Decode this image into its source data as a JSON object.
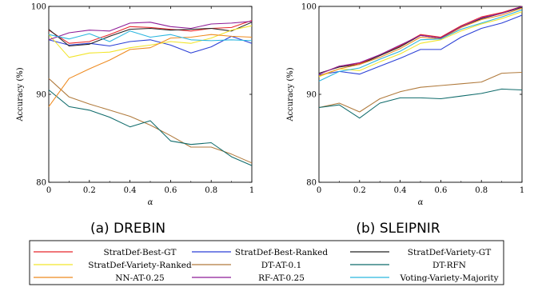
{
  "colors": {
    "StratDef-Best-GT": "#e8262a",
    "StratDef-Best-Ranked": "#2a3fd6",
    "StratDef-Variety-GT": "#222222",
    "StratDef-Variety-Ranked": "#f2e52a",
    "DT-AT-0.1": "#b07a3c",
    "DT-RFN": "#0f6b6b",
    "NN-AT-0.25": "#ee8a1f",
    "RF-AT-0.25": "#8e1c97",
    "Voting-Variety-Majority": "#2ab6df"
  },
  "chart_data": [
    {
      "type": "line",
      "caption": "(a) DREBIN",
      "xlabel": "α",
      "ylabel": "Accuracy (%)",
      "xlim": [
        0,
        1
      ],
      "ylim": [
        80,
        100
      ],
      "xticks": [
        "0",
        "0.2",
        "0.4",
        "0.6",
        "0.8",
        "1"
      ],
      "yticks": [
        "80",
        "90",
        "100"
      ],
      "x": [
        0,
        0.1,
        0.2,
        0.3,
        0.4,
        0.5,
        0.6,
        0.7,
        0.8,
        0.9,
        1.0
      ],
      "series": [
        {
          "name": "StratDef-Best-GT",
          "values": [
            97.3,
            95.8,
            96.0,
            96.8,
            97.7,
            97.6,
            97.4,
            97.2,
            97.5,
            97.6,
            98.4
          ]
        },
        {
          "name": "StratDef-Best-Ranked",
          "values": [
            96.2,
            95.6,
            95.8,
            95.5,
            96.0,
            96.2,
            95.6,
            94.7,
            95.4,
            96.6,
            95.8
          ]
        },
        {
          "name": "StratDef-Variety-GT",
          "values": [
            97.4,
            95.5,
            95.7,
            96.6,
            97.4,
            97.5,
            97.3,
            97.4,
            97.5,
            97.2,
            98.2
          ]
        },
        {
          "name": "StratDef-Variety-Ranked",
          "values": [
            96.8,
            94.2,
            94.7,
            94.8,
            95.3,
            95.6,
            96.0,
            95.8,
            96.4,
            97.3,
            97.8
          ]
        },
        {
          "name": "DT-AT-0.1",
          "values": [
            91.8,
            89.7,
            88.9,
            88.2,
            87.5,
            86.5,
            85.3,
            84.0,
            84.0,
            83.2,
            82.2
          ]
        },
        {
          "name": "DT-RFN",
          "values": [
            90.5,
            88.6,
            88.2,
            87.4,
            86.3,
            87.0,
            84.7,
            84.3,
            84.5,
            82.9,
            81.9
          ]
        },
        {
          "name": "NN-AT-0.25",
          "values": [
            88.6,
            91.8,
            92.9,
            93.9,
            95.1,
            95.3,
            96.4,
            96.5,
            96.8,
            96.6,
            96.5
          ]
        },
        {
          "name": "RF-AT-0.25",
          "values": [
            96.2,
            97.0,
            97.3,
            97.2,
            98.1,
            98.2,
            97.7,
            97.5,
            98.0,
            98.1,
            98.3
          ]
        },
        {
          "name": "Voting-Variety-Majority",
          "values": [
            96.8,
            96.3,
            96.9,
            96.0,
            97.2,
            96.5,
            96.8,
            96.2,
            96.1,
            96.2,
            96.1
          ]
        }
      ]
    },
    {
      "type": "line",
      "caption": "(b) SLEIPNIR",
      "xlabel": "α",
      "ylabel": "Accuracy (%)",
      "xlim": [
        0,
        1
      ],
      "ylim": [
        80,
        100
      ],
      "xticks": [
        "0",
        "0.2",
        "0.4",
        "0.6",
        "0.8",
        "1"
      ],
      "yticks": [
        "80",
        "90",
        "100"
      ],
      "x": [
        0,
        0.1,
        0.2,
        0.3,
        0.4,
        0.5,
        0.6,
        0.7,
        0.8,
        0.9,
        1.0
      ],
      "series": [
        {
          "name": "StratDef-Best-GT",
          "values": [
            92.3,
            93.2,
            93.5,
            94.5,
            95.5,
            96.8,
            96.5,
            97.8,
            98.8,
            99.3,
            100.0
          ]
        },
        {
          "name": "StratDef-Best-Ranked",
          "values": [
            92.2,
            92.6,
            92.3,
            93.2,
            94.1,
            95.1,
            95.1,
            96.5,
            97.5,
            98.1,
            99.0
          ]
        },
        {
          "name": "StratDef-Variety-GT",
          "values": [
            92.4,
            93.1,
            93.4,
            94.4,
            95.4,
            96.7,
            96.4,
            97.7,
            98.6,
            99.2,
            99.9
          ]
        },
        {
          "name": "StratDef-Variety-Ranked",
          "values": [
            92.0,
            92.9,
            92.7,
            93.7,
            94.6,
            95.8,
            96.2,
            97.2,
            98.0,
            98.6,
            99.4
          ]
        },
        {
          "name": "DT-AT-0.1",
          "values": [
            88.5,
            89.0,
            88.0,
            89.5,
            90.3,
            90.8,
            91.0,
            91.2,
            91.4,
            92.4,
            92.5
          ]
        },
        {
          "name": "DT-RFN",
          "values": [
            88.5,
            88.8,
            87.3,
            89.0,
            89.6,
            89.6,
            89.5,
            89.8,
            90.1,
            90.6,
            90.5
          ]
        },
        {
          "name": "NN-AT-0.25",
          "values": [
            92.1,
            92.9,
            93.4,
            94.2,
            95.2,
            96.5,
            96.3,
            97.6,
            98.5,
            99.0,
            99.8
          ]
        },
        {
          "name": "RF-AT-0.25",
          "values": [
            92.3,
            93.2,
            93.6,
            94.5,
            95.6,
            96.7,
            96.4,
            97.7,
            98.7,
            99.2,
            100.0
          ]
        },
        {
          "name": "Voting-Variety-Majority",
          "values": [
            91.5,
            92.6,
            93.0,
            94.0,
            94.9,
            96.2,
            96.3,
            97.4,
            98.1,
            98.8,
            99.6
          ]
        }
      ]
    }
  ],
  "legend": {
    "placement": "bottom",
    "entries": [
      "StratDef-Best-GT",
      "StratDef-Best-Ranked",
      "StratDef-Variety-GT",
      "StratDef-Variety-Ranked",
      "DT-AT-0.1",
      "DT-RFN",
      "NN-AT-0.25",
      "RF-AT-0.25",
      "Voting-Variety-Majority"
    ]
  }
}
